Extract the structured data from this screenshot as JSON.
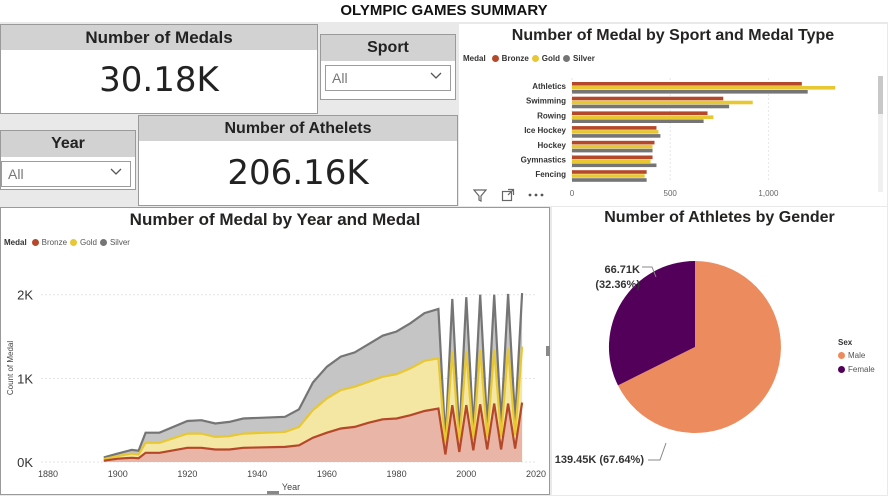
{
  "page_title": "OLYMPIC GAMES SUMMARY",
  "kpi_medals": {
    "title": "Number of Medals",
    "value": "30.18K"
  },
  "kpi_athletes": {
    "title": "Number of Athelets",
    "value": "206.16K"
  },
  "slicer_sport": {
    "title": "Sport",
    "value": "All"
  },
  "slicer_year": {
    "title": "Year",
    "value": "All"
  },
  "colors": {
    "bronze": "#b5482a",
    "gold": "#e8c832",
    "silver": "#757575",
    "male": "#ec8c5e",
    "female": "#52005a"
  },
  "bar_panel": {
    "title": "Number of Medal by Sport and Medal Type",
    "legend_title": "Medal",
    "legend": [
      "Bronze",
      "Gold",
      "Silver"
    ]
  },
  "area_panel": {
    "title": "Number of Medal by Year and Medal",
    "legend_title": "Medal",
    "legend": [
      "Bronze",
      "Gold",
      "Silver"
    ]
  },
  "pie_panel": {
    "title": "Number of Athletes by Gender",
    "legend_title": "Sex",
    "legend": [
      "Male",
      "Female"
    ]
  },
  "chart_data": [
    {
      "type": "bar",
      "title": "Number of Medal by Sport and Medal Type",
      "categories": [
        "Athletics",
        "Swimming",
        "Rowing",
        "Ice Hockey",
        "Hockey",
        "Gymnastics",
        "Fencing"
      ],
      "series": [
        {
          "name": "Bronze",
          "values": [
            1170,
            770,
            690,
            430,
            420,
            410,
            380
          ]
        },
        {
          "name": "Gold",
          "values": [
            1340,
            920,
            720,
            440,
            410,
            400,
            370
          ]
        },
        {
          "name": "Silver",
          "values": [
            1200,
            800,
            670,
            450,
            410,
            430,
            380
          ]
        }
      ],
      "x_ticks": [
        "0",
        "500",
        "1,000"
      ],
      "xlim": [
        0,
        1400
      ]
    },
    {
      "type": "area",
      "title": "Number of Medal by Year and Medal",
      "xlabel": "Year",
      "ylabel": "Count of Medal",
      "x_ticks": [
        "1880",
        "1900",
        "1920",
        "1940",
        "1960",
        "1980",
        "2000",
        "2020"
      ],
      "y_ticks": [
        "0K",
        "1K",
        "2K"
      ],
      "xlim": [
        1880,
        2020
      ],
      "ylim": [
        0,
        2200
      ],
      "x": [
        1896,
        1900,
        1904,
        1906,
        1908,
        1912,
        1920,
        1924,
        1928,
        1932,
        1936,
        1948,
        1952,
        1956,
        1960,
        1964,
        1968,
        1972,
        1976,
        1980,
        1984,
        1988,
        1992,
        1994,
        1996,
        1998,
        2000,
        2002,
        2004,
        2006,
        2008,
        2010,
        2012,
        2014,
        2016
      ],
      "series": [
        {
          "name": "Bronze",
          "values": [
            15,
            40,
            50,
            45,
            110,
            110,
            170,
            170,
            150,
            150,
            170,
            180,
            200,
            290,
            350,
            400,
            420,
            470,
            510,
            520,
            560,
            610,
            640,
            90,
            680,
            120,
            680,
            140,
            690,
            150,
            700,
            150,
            700,
            160,
            710
          ]
        },
        {
          "name": "Gold",
          "values": [
            35,
            70,
            100,
            90,
            230,
            230,
            340,
            340,
            300,
            310,
            340,
            360,
            420,
            620,
            760,
            860,
            900,
            960,
            1020,
            1050,
            1120,
            1210,
            1240,
            170,
            1330,
            220,
            1330,
            260,
            1340,
            290,
            1350,
            300,
            1360,
            320,
            1380
          ]
        },
        {
          "name": "Silver",
          "values": [
            55,
            100,
            145,
            135,
            350,
            350,
            490,
            500,
            460,
            480,
            520,
            540,
            630,
            950,
            1140,
            1260,
            1310,
            1410,
            1510,
            1560,
            1660,
            1780,
            1830,
            260,
            1950,
            320,
            1970,
            400,
            2000,
            430,
            2000,
            470,
            2010,
            500,
            2020
          ]
        }
      ]
    },
    {
      "type": "pie",
      "title": "Number of Athletes by Gender",
      "labels": [
        "Male",
        "Female"
      ],
      "values": [
        139.45,
        66.71
      ],
      "data_labels": [
        "139.45K (67.64%)",
        "66.71K (32.36%)"
      ]
    }
  ]
}
